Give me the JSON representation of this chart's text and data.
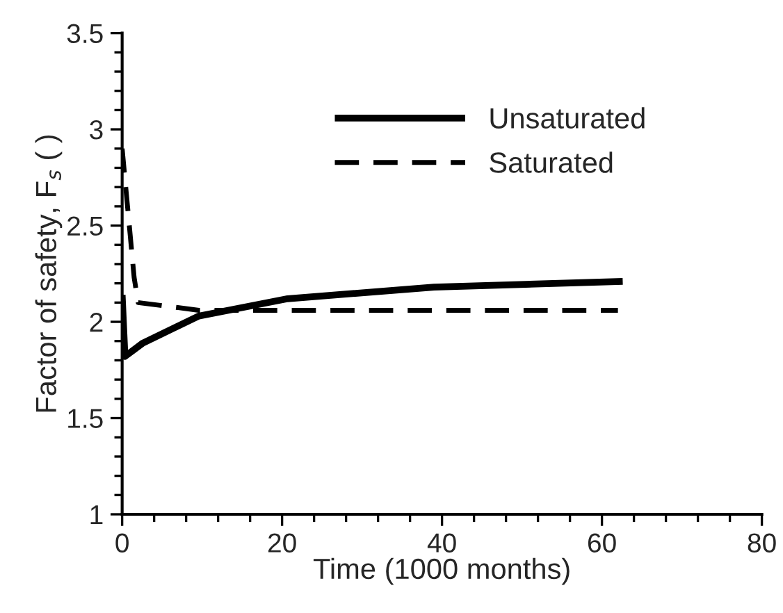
{
  "chart_data": {
    "type": "line",
    "xlabel": "Time (1000 months)",
    "ylabel": "Factor of safety, F$_{s}$ ( )",
    "xlim": [
      0,
      80
    ],
    "xticks": [
      0,
      20,
      40,
      60,
      80
    ],
    "ylim": [
      1,
      3.5
    ],
    "yticks": [
      1,
      1.5,
      2,
      2.5,
      3,
      3.5
    ],
    "grid": false,
    "legend": "top right",
    "marker": "none",
    "series": [
      {
        "name": "Unsaturated",
        "color": "#000000",
        "line_style": "solid",
        "x": [
          0,
          0.35,
          2.6,
          9.6,
          20.7,
          39,
          62.6
        ],
        "values": [
          2.14,
          1.82,
          1.89,
          2.03,
          2.12,
          2.18,
          2.21
        ]
      },
      {
        "name": "Saturated",
        "color": "#000000",
        "line_style": "dashed",
        "x": [
          0,
          1.5,
          2,
          9.6,
          62
        ],
        "values": [
          2.9,
          2.23,
          2.1,
          2.06,
          2.06
        ]
      }
    ]
  }
}
